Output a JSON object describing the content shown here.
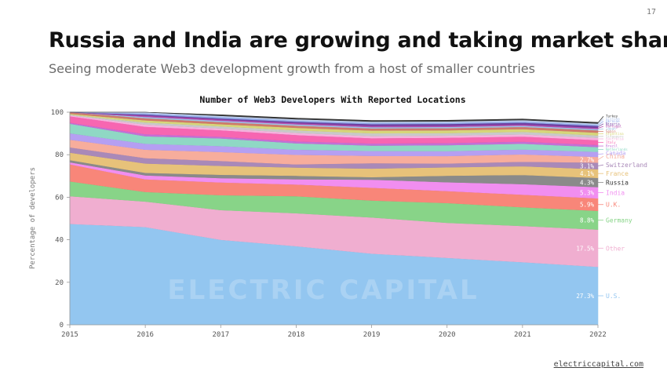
{
  "page_number": "17",
  "title": "Russia and India are growing and taking market share",
  "subtitle": "Seeing moderate Web3 development growth from a host of smaller countries",
  "footer_link": "electriccapital.com",
  "watermark": "ELECTRIC CAPITAL",
  "chart_data": {
    "type": "area",
    "stacked": true,
    "title": "Number of Web3 Developers With Reported Locations",
    "ylabel": "Percentage of developers",
    "xlabel": "",
    "x": [
      2015,
      2016,
      2017,
      2018,
      2019,
      2020,
      2021,
      2022
    ],
    "ylim": [
      0,
      100
    ],
    "yticks": [
      0,
      20,
      40,
      60,
      80,
      100
    ],
    "grid": false,
    "series": [
      {
        "name": "U.S.",
        "label": "27.3%",
        "color": "#93c6f0",
        "values": [
          47.5,
          46,
          40,
          37,
          33.5,
          31.5,
          29.5,
          27.3
        ]
      },
      {
        "name": "Other",
        "label": "17.5%",
        "color": "#f0aed0",
        "values": [
          13,
          12,
          14,
          15.5,
          17,
          16.5,
          17,
          17.5
        ]
      },
      {
        "name": "Germany",
        "label": "8.8%",
        "color": "#88d488",
        "values": [
          7,
          4.5,
          7,
          8,
          8,
          9.3,
          8.8,
          8.8
        ]
      },
      {
        "name": "U.K.",
        "label": "5.9%",
        "color": "#f88679",
        "values": [
          8,
          6,
          6,
          5.5,
          6,
          5.6,
          5.9,
          5.9
        ]
      },
      {
        "name": "India",
        "label": "5.3%",
        "color": "#f18ef0",
        "values": [
          1,
          1.8,
          2,
          2.5,
          3.8,
          4.2,
          5,
          5.3
        ]
      },
      {
        "name": "Russia",
        "label": "4.3%",
        "color": "#8a8a8a",
        "values": [
          1,
          1.2,
          1.6,
          1.6,
          1.2,
          3,
          4.3,
          4.3
        ]
      },
      {
        "name": "France",
        "label": "4.1%",
        "color": "#e7c27a",
        "values": [
          3.5,
          4.4,
          4.2,
          3.9,
          4,
          4,
          4.1,
          4.1
        ]
      },
      {
        "name": "Switzerland",
        "label": "3.1%",
        "color": "#a989b8",
        "values": [
          2.5,
          2.5,
          2.3,
          1.5,
          2.5,
          1.8,
          2.1,
          3.1
        ]
      },
      {
        "name": "China",
        "label": "2.7%",
        "color": "#f7ad9c",
        "values": [
          3.6,
          4,
          4.2,
          4.5,
          3.5,
          3.5,
          3.5,
          2.7
        ]
      },
      {
        "name": "Canada",
        "label": "",
        "color": "#b59ff2",
        "values": [
          3,
          2.8,
          2.8,
          2.4,
          2.3,
          2.3,
          2.3,
          2.4
        ]
      },
      {
        "name": "Netherlands",
        "label": "",
        "color": "#8fd8c4",
        "values": [
          4.5,
          3.5,
          3.6,
          3,
          2.5,
          2.8,
          2.7,
          2.2
        ]
      },
      {
        "name": "Brazil",
        "label": "",
        "color": "#c46fd6",
        "values": [
          0.5,
          1,
          0.8,
          0.9,
          1,
          1,
          1,
          1
        ]
      },
      {
        "name": "Italy",
        "label": "",
        "color": "#f766b1",
        "values": [
          3,
          3.5,
          3,
          3,
          2.5,
          2.5,
          2.4,
          2.3
        ]
      },
      {
        "name": "Australia",
        "label": "",
        "color": "#f5b2de",
        "values": [
          0.5,
          1,
          0.9,
          1,
          1,
          1,
          1,
          1.1
        ]
      },
      {
        "name": "Singapore",
        "label": "",
        "color": "#c9c9c9",
        "values": [
          0.3,
          1,
          1,
          1.2,
          1.3,
          1.2,
          1.2,
          1.1
        ]
      },
      {
        "name": "Argentina",
        "label": "",
        "color": "#d6d67a",
        "values": [
          0.4,
          1,
          1,
          1.2,
          1.3,
          1.3,
          1.3,
          1.3
        ]
      },
      {
        "name": "Spain",
        "label": "",
        "color": "#cf7a6b",
        "values": [
          1,
          1,
          1,
          1,
          1,
          1,
          1,
          1.1
        ]
      },
      {
        "name": "Japan",
        "label": "",
        "color": "#9fc4e6",
        "values": [
          0.4,
          0.6,
          0.6,
          0.6,
          0.6,
          0.6,
          0.6,
          0.6
        ]
      },
      {
        "name": "Portugal",
        "label": "",
        "color": "#b44fb0",
        "values": [
          0.6,
          0.6,
          0.6,
          0.6,
          0.6,
          0.6,
          0.6,
          0.6
        ]
      },
      {
        "name": "Nigeria",
        "label": "",
        "color": "#6f3fa0",
        "values": [
          0.5,
          0.5,
          0.5,
          0.6,
          0.8,
          0.8,
          0.8,
          0.8
        ]
      },
      {
        "name": "Ukraine",
        "label": "",
        "color": "#8fa8e8",
        "values": [
          1,
          0.6,
          0.6,
          0.6,
          0.6,
          0.6,
          0.6,
          0.6
        ]
      },
      {
        "name": "Vietnam",
        "label": "",
        "color": "#bfd0f0",
        "values": [
          0.4,
          0.6,
          0.6,
          0.6,
          0.6,
          0.6,
          0.6,
          0.6
        ]
      },
      {
        "name": "Turkey",
        "label": "",
        "color": "#3a3a3a",
        "values": [
          0.3,
          0.5,
          0.5,
          0.5,
          0.5,
          0.5,
          0.5,
          0.5
        ]
      }
    ]
  }
}
